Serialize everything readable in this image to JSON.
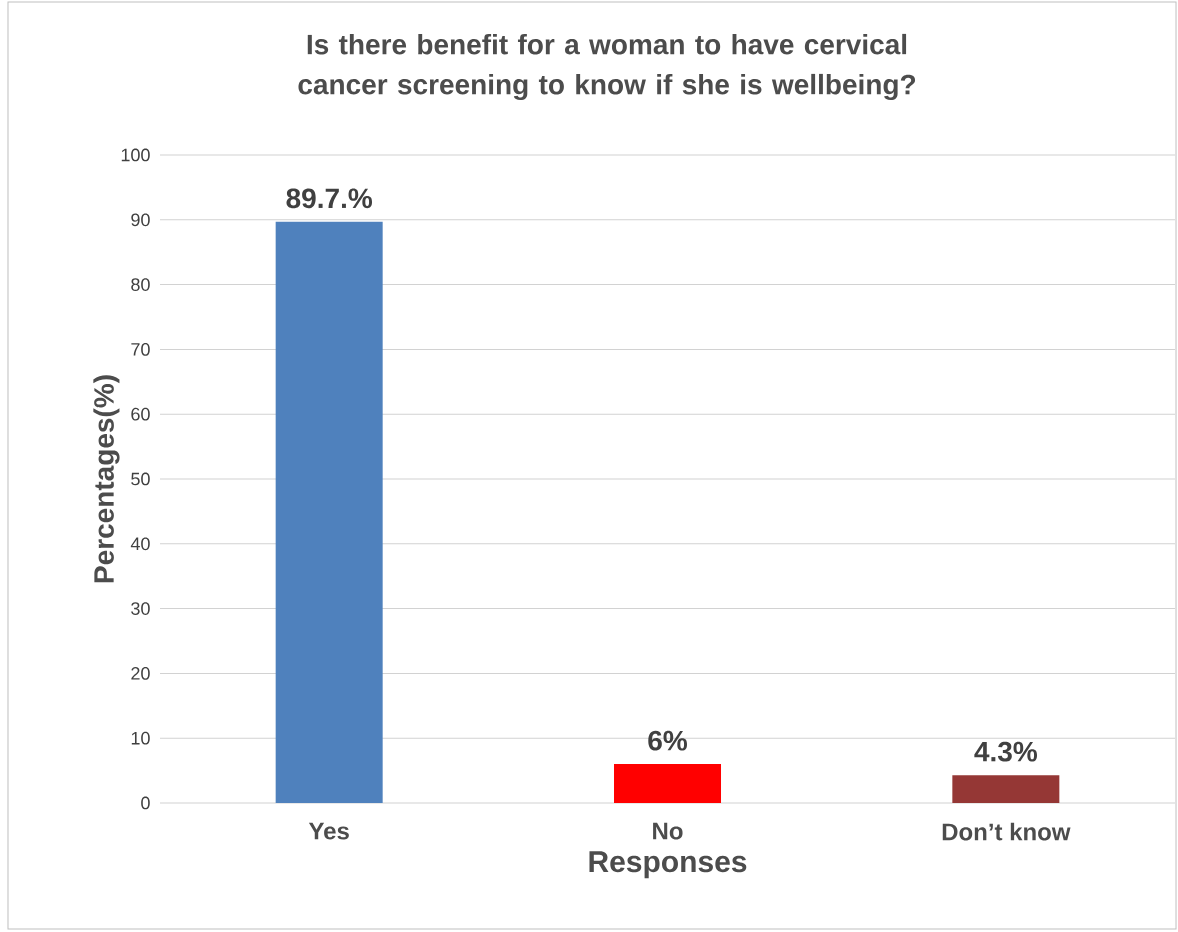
{
  "chart_data": {
    "type": "bar",
    "title": "Is there benefit for a woman to have cervical cancer screening to know if she is wellbeing?",
    "xlabel": "Responses",
    "ylabel": "Percentages(%)",
    "categories": [
      "Yes",
      "No",
      "Don’t know"
    ],
    "values": [
      89.7,
      6,
      4.3
    ],
    "colors": [
      "#4f81bd",
      "#ff0000",
      "#953735"
    ],
    "value_labels": [
      "89.7.%",
      "6%",
      "4.3%"
    ],
    "ylim": [
      0,
      100
    ],
    "yticks": [
      0,
      10,
      20,
      30,
      40,
      50,
      60,
      70,
      80,
      90,
      100
    ],
    "grid": "y"
  }
}
